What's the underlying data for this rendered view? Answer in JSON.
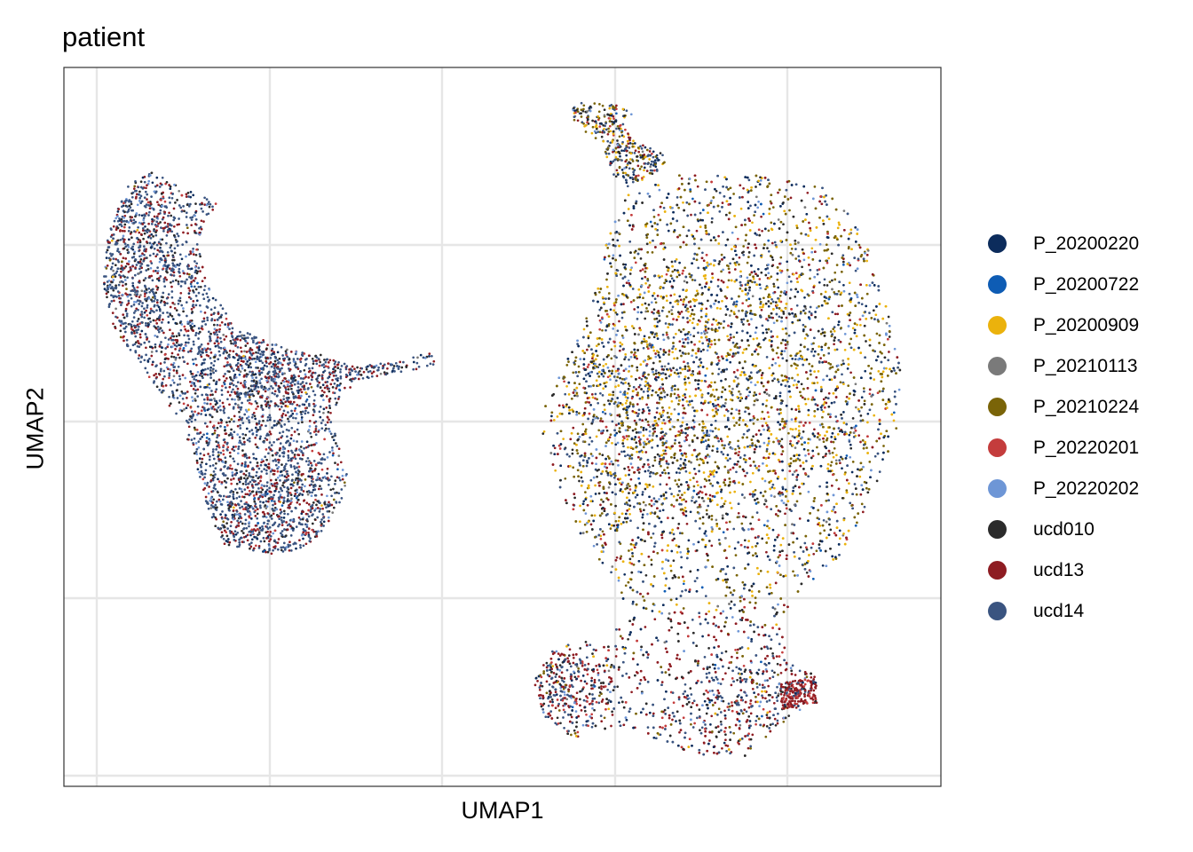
{
  "chart_data": {
    "type": "scatter",
    "title": "patient",
    "xlabel": "UMAP1",
    "ylabel": "UMAP2",
    "x_tick_labels_shown": false,
    "y_tick_labels_shown": false,
    "grid": true,
    "legend_position": "right",
    "point_size": "small",
    "series": [
      {
        "name": "P_20200220",
        "color": "#0C2C5C"
      },
      {
        "name": "P_20200722",
        "color": "#0E5CB4"
      },
      {
        "name": "P_20200909",
        "color": "#EBB20C"
      },
      {
        "name": "P_20210113",
        "color": "#7A7A7A"
      },
      {
        "name": "P_20210224",
        "color": "#7A6408"
      },
      {
        "name": "P_20220201",
        "color": "#C43C3C"
      },
      {
        "name": "P_20220202",
        "color": "#6E96D6"
      },
      {
        "name": "ucd010",
        "color": "#2B2B2B"
      },
      {
        "name": "ucd13",
        "color": "#8E1C22"
      },
      {
        "name": "ucd14",
        "color": "#3A5480"
      }
    ],
    "clusters": [
      {
        "name": "left",
        "dominant": [
          "ucd14",
          "ucd13",
          "ucd010"
        ]
      },
      {
        "name": "right",
        "dominant": [
          "P_20210224",
          "P_20200909",
          "ucd14",
          "ucd010",
          "ucd13"
        ]
      }
    ]
  }
}
